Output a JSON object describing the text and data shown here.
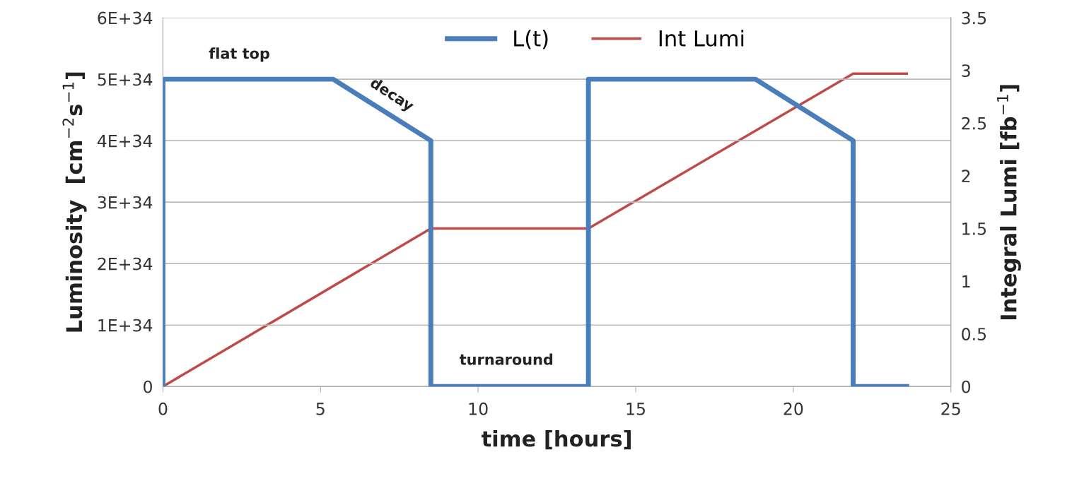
{
  "chart_data": {
    "type": "line",
    "xlabel": "time [hours]",
    "ylabel": "Luminosity  [cm$^{−2}$s$^{−1}$]",
    "y2label": "Integral Lumi [fb$^{−1}$]",
    "xlim": [
      0,
      25
    ],
    "xticks": [
      0,
      5,
      10,
      15,
      20,
      25
    ],
    "ylim": [
      0,
      6e+34
    ],
    "yticks": [
      0,
      {
        "value": 1e+34,
        "label": "1E+34"
      },
      {
        "value": 2e+34,
        "label": "2E+34"
      },
      {
        "value": 3e+34,
        "label": "3E+34"
      },
      {
        "value": 4e+34,
        "label": "4E+34"
      },
      {
        "value": 5e+34,
        "label": "5E+34"
      },
      {
        "value": 6e+34,
        "label": "6E+34"
      }
    ],
    "y2lim": [
      0,
      3.5
    ],
    "y2ticks": [
      0,
      0.5,
      1,
      1.5,
      2,
      2.5,
      3,
      3.5
    ],
    "grid": "y",
    "legend": "top",
    "marker": "none",
    "line_style": "solid",
    "series": [
      {
        "name": "L(t)",
        "color": "#4a7ebb",
        "x": [
          0,
          0,
          5.4,
          8.5,
          8.5,
          13.5,
          13.5,
          18.8,
          21.9,
          21.9,
          23.6
        ],
        "values": [
          0,
          5e+34,
          5e+34,
          4e+34,
          0,
          0,
          5e+34,
          5e+34,
          4e+34,
          0,
          0
        ]
      },
      {
        "name": "Int Lumi",
        "color": "#be4b48",
        "axis": "y2",
        "x": [
          0,
          8.5,
          13.5,
          21.9,
          23.6
        ],
        "values": [
          0,
          1.5,
          1.5,
          2.97,
          2.97
        ]
      }
    ],
    "annotations": [
      "flat top",
      "decay",
      "turnaround"
    ]
  }
}
